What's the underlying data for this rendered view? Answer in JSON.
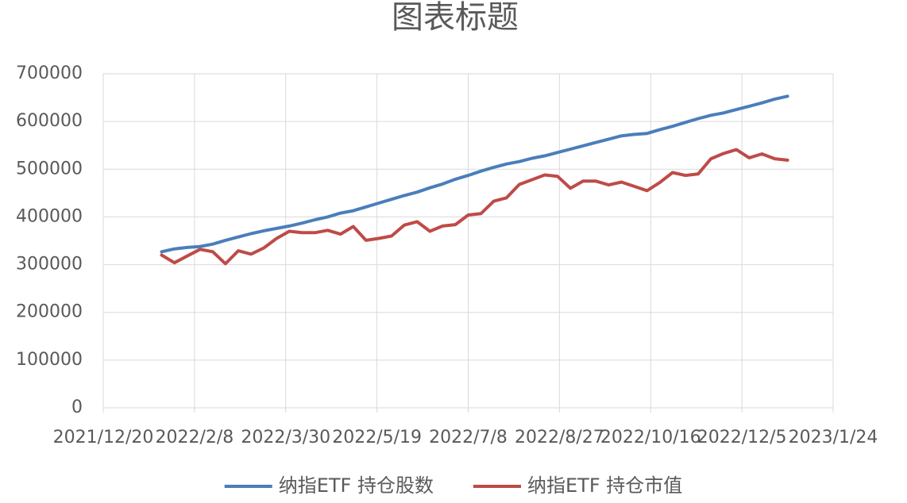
{
  "chart_data": {
    "type": "line",
    "title": "图表标题",
    "x": [
      "2022-01-21",
      "2022-01-28",
      "2022-02-04",
      "2022-02-11",
      "2022-02-18",
      "2022-02-25",
      "2022-03-04",
      "2022-03-11",
      "2022-03-18",
      "2022-03-25",
      "2022-04-01",
      "2022-04-08",
      "2022-04-15",
      "2022-04-22",
      "2022-04-29",
      "2022-05-06",
      "2022-05-13",
      "2022-05-20",
      "2022-05-27",
      "2022-06-03",
      "2022-06-10",
      "2022-06-17",
      "2022-06-24",
      "2022-07-01",
      "2022-07-08",
      "2022-07-15",
      "2022-07-22",
      "2022-07-29",
      "2022-08-05",
      "2022-08-12",
      "2022-08-19",
      "2022-08-26",
      "2022-09-02",
      "2022-09-09",
      "2022-09-16",
      "2022-09-23",
      "2022-09-30",
      "2022-10-07",
      "2022-10-14",
      "2022-10-21",
      "2022-10-28",
      "2022-11-04",
      "2022-11-11",
      "2022-11-18",
      "2022-11-25",
      "2022-12-02",
      "2022-12-09",
      "2022-12-16",
      "2022-12-23",
      "2022-12-30"
    ],
    "series": [
      {
        "name": "纳指ETF 持仓股数",
        "color": "#4a7ebb",
        "values": [
          327000,
          333000,
          336000,
          338000,
          343000,
          351000,
          358000,
          365000,
          371000,
          376000,
          381000,
          387000,
          394000,
          400000,
          408000,
          413000,
          421000,
          429000,
          437000,
          445000,
          452000,
          461000,
          469000,
          479000,
          487000,
          496000,
          504000,
          511000,
          516000,
          523000,
          528000,
          535000,
          542000,
          549000,
          556000,
          563000,
          570000,
          573000,
          575000,
          583000,
          590000,
          598000,
          606000,
          613000,
          618000,
          625000,
          632000,
          639000,
          647000,
          653000
        ]
      },
      {
        "name": "纳指ETF 持仓市值",
        "color": "#be4b48",
        "values": [
          320000,
          304000,
          318000,
          332000,
          327000,
          302000,
          329000,
          322000,
          335000,
          355000,
          370000,
          367000,
          367000,
          372000,
          364000,
          380000,
          351000,
          355000,
          360000,
          383000,
          390000,
          370000,
          381000,
          384000,
          404000,
          407000,
          433000,
          440000,
          468000,
          478000,
          488000,
          485000,
          460000,
          475000,
          475000,
          467000,
          473000,
          464000,
          455000,
          472000,
          493000,
          487000,
          490000,
          522000,
          533000,
          541000,
          524000,
          532000,
          522000,
          519000
        ]
      }
    ],
    "xlim": [
      "2021-12-20",
      "2023-01-24"
    ],
    "xticks": [
      {
        "value": "2021-12-20",
        "label": "2021/12/20"
      },
      {
        "value": "2022-02-08",
        "label": "2022/2/8"
      },
      {
        "value": "2022-03-30",
        "label": "2022/3/30"
      },
      {
        "value": "2022-05-19",
        "label": "2022/5/19"
      },
      {
        "value": "2022-07-08",
        "label": "2022/7/8"
      },
      {
        "value": "2022-08-27",
        "label": "2022/8/27"
      },
      {
        "value": "2022-10-16",
        "label": "2022/10/16"
      },
      {
        "value": "2022-12-05",
        "label": "2022/12/5"
      },
      {
        "value": "2023-01-24",
        "label": "2023/1/24"
      }
    ],
    "ylim": [
      0,
      700000
    ],
    "yticks": [
      0,
      100000,
      200000,
      300000,
      400000,
      500000,
      600000,
      700000
    ],
    "grid": true,
    "legend": "bottom"
  }
}
